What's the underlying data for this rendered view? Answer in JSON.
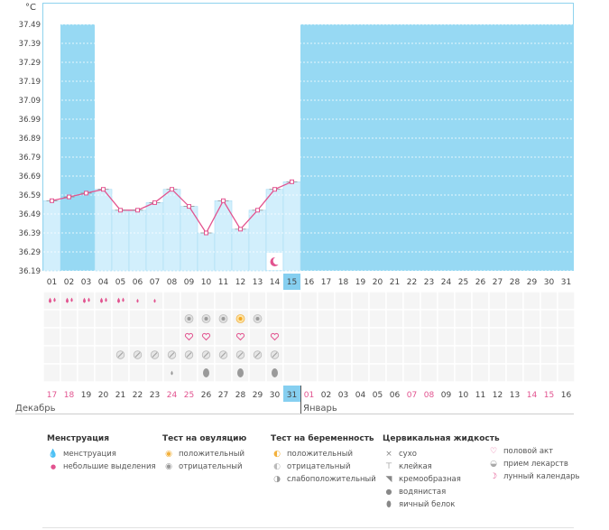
{
  "chart": {
    "unit": "°C",
    "y_labels": [
      "37.49",
      "37.39",
      "37.29",
      "37.19",
      "37.09",
      "36.99",
      "36.89",
      "36.79",
      "36.69",
      "36.59",
      "36.49",
      "36.39",
      "36.29",
      "36.19"
    ]
  },
  "chart_data": {
    "type": "line",
    "title": "",
    "ylabel": "°C",
    "ylim": [
      36.19,
      37.49
    ],
    "x": [
      "01",
      "02",
      "03",
      "04",
      "05",
      "06",
      "07",
      "08",
      "09",
      "10",
      "11",
      "12",
      "13",
      "14",
      "15"
    ],
    "series": [
      {
        "values": [
          36.56,
          36.58,
          36.6,
          36.62,
          36.51,
          36.51,
          36.55,
          36.62,
          36.53,
          36.39,
          36.56,
          36.41,
          36.51,
          36.62,
          36.66
        ]
      }
    ],
    "bars": [
      36.56,
      null,
      null,
      36.62,
      36.51,
      36.51,
      36.55,
      36.62,
      36.53,
      36.39,
      36.56,
      36.41,
      36.51,
      36.62,
      36.66
    ],
    "moon_day": "14",
    "today_index": 14,
    "colors": {
      "future": "#97d9f3",
      "bar": "#d2effc",
      "line": "#e2538f",
      "today": "#86cff0"
    }
  },
  "days_top": [
    "01",
    "02",
    "03",
    "04",
    "05",
    "06",
    "07",
    "08",
    "09",
    "10",
    "11",
    "12",
    "13",
    "14",
    "15",
    "16",
    "17",
    "18",
    "19",
    "20",
    "21",
    "22",
    "23",
    "24",
    "25",
    "26",
    "27",
    "28",
    "29",
    "30",
    "31"
  ],
  "days_bottom": [
    {
      "t": "17",
      "red": true
    },
    {
      "t": "18",
      "red": true
    },
    {
      "t": "19",
      "red": false
    },
    {
      "t": "20",
      "red": false
    },
    {
      "t": "21",
      "red": false
    },
    {
      "t": "22",
      "red": false
    },
    {
      "t": "23",
      "red": false
    },
    {
      "t": "24",
      "red": true
    },
    {
      "t": "25",
      "red": true
    },
    {
      "t": "26",
      "red": false
    },
    {
      "t": "27",
      "red": false
    },
    {
      "t": "28",
      "red": false
    },
    {
      "t": "29",
      "red": false
    },
    {
      "t": "30",
      "red": false
    },
    {
      "t": "31",
      "red": false
    },
    {
      "t": "01",
      "red": true
    },
    {
      "t": "02",
      "red": false
    },
    {
      "t": "03",
      "red": false
    },
    {
      "t": "04",
      "red": false
    },
    {
      "t": "05",
      "red": false
    },
    {
      "t": "06",
      "red": false
    },
    {
      "t": "07",
      "red": true
    },
    {
      "t": "08",
      "red": true
    },
    {
      "t": "09",
      "red": false
    },
    {
      "t": "10",
      "red": false
    },
    {
      "t": "11",
      "red": false
    },
    {
      "t": "12",
      "red": false
    },
    {
      "t": "13",
      "red": false
    },
    {
      "t": "14",
      "red": true
    },
    {
      "t": "15",
      "red": true
    },
    {
      "t": "16",
      "red": false
    }
  ],
  "rows": {
    "menstruation": [
      "heavy",
      "heavy",
      "heavy",
      "heavy",
      "heavy",
      "light",
      "light",
      "",
      "",
      "",
      "",
      "",
      "",
      "",
      "",
      "",
      "",
      "",
      "",
      "",
      "",
      "",
      "",
      "",
      "",
      "",
      "",
      "",
      "",
      "",
      ""
    ],
    "ovulation": [
      "",
      "",
      "",
      "",
      "",
      "",
      "",
      "",
      "neg",
      "neg",
      "neg",
      "pos",
      "neg",
      "",
      "",
      "",
      "",
      "",
      "",
      "",
      "",
      "",
      "",
      "",
      "",
      "",
      "",
      "",
      "",
      "",
      ""
    ],
    "intercourse": [
      "",
      "",
      "",
      "",
      "",
      "",
      "",
      "",
      "heart",
      "heart",
      "",
      "heart",
      "",
      "heart",
      "",
      "",
      "",
      "",
      "",
      "",
      "",
      "",
      "",
      "",
      "",
      "",
      "",
      "",
      "",
      "",
      ""
    ],
    "medicine": [
      "",
      "",
      "",
      "",
      "pill",
      "pill",
      "pill",
      "pill",
      "pill",
      "pill",
      "pill",
      "pill",
      "pill",
      "pill",
      "",
      "",
      "",
      "",
      "",
      "",
      "",
      "",
      "",
      "",
      "",
      "",
      "",
      "",
      "",
      "",
      ""
    ],
    "fluid": [
      "",
      "",
      "",
      "",
      "",
      "",
      "",
      "watery",
      "",
      "eggwhite",
      "",
      "eggwhite",
      "",
      "eggwhite",
      "",
      "",
      "",
      "",
      "",
      "",
      "",
      "",
      "",
      "",
      "",
      "",
      "",
      "",
      "",
      "",
      ""
    ]
  },
  "months": {
    "left": "Декабрь",
    "right": "Январь"
  },
  "legend": {
    "menstruation": {
      "title": "Менструация",
      "items": [
        "менструация",
        "небольшие выделения"
      ]
    },
    "ovulation": {
      "title": "Тест на овуляцию",
      "items": [
        "положительный",
        "отрицательный"
      ]
    },
    "pregnancy": {
      "title": "Тест на беременность",
      "items": [
        "положительный",
        "отрицательный",
        "слабоположительный"
      ]
    },
    "fluid": {
      "title": "Цервикальная жидкость",
      "items": [
        "сухо",
        "клейкая",
        "кремообразная",
        "водянистая",
        "яичный белок"
      ]
    },
    "other": {
      "items": [
        "половой акт",
        "прием лекарств",
        "лунный календарь"
      ]
    }
  }
}
